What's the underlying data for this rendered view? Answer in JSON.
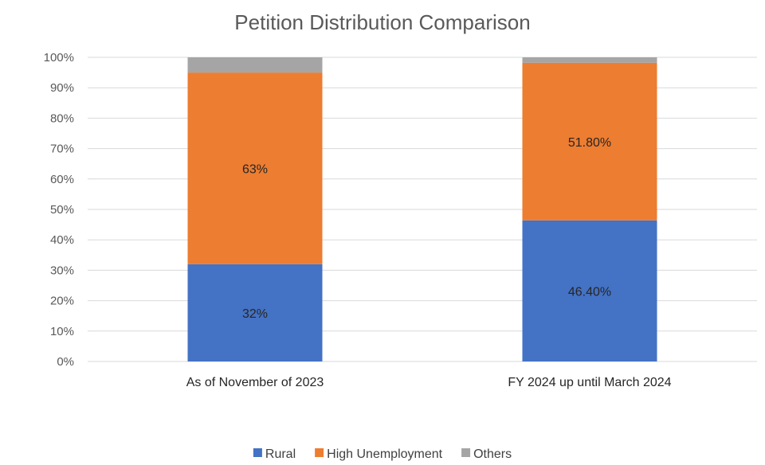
{
  "chart_data": {
    "type": "bar",
    "stacked": "percent",
    "title": "Petition Distribution Comparison",
    "categories": [
      "As of November of 2023",
      "FY 2024 up until March 2024"
    ],
    "y_ticks": [
      "0%",
      "10%",
      "20%",
      "30%",
      "40%",
      "50%",
      "60%",
      "70%",
      "80%",
      "90%",
      "100%"
    ],
    "ylim": [
      0,
      100
    ],
    "grid": true,
    "legend": "bottom",
    "series": [
      {
        "name": "Rural",
        "color": "#4472C4",
        "values": [
          32,
          46.4
        ],
        "labels": [
          "32%",
          "46.40%"
        ]
      },
      {
        "name": "High Unemployment",
        "color": "#ED7D31",
        "values": [
          63,
          51.8
        ],
        "labels": [
          "63%",
          "51.80%"
        ]
      },
      {
        "name": "Others",
        "color": "#A5A5A5",
        "values": [
          5,
          1.8
        ]
      }
    ]
  }
}
